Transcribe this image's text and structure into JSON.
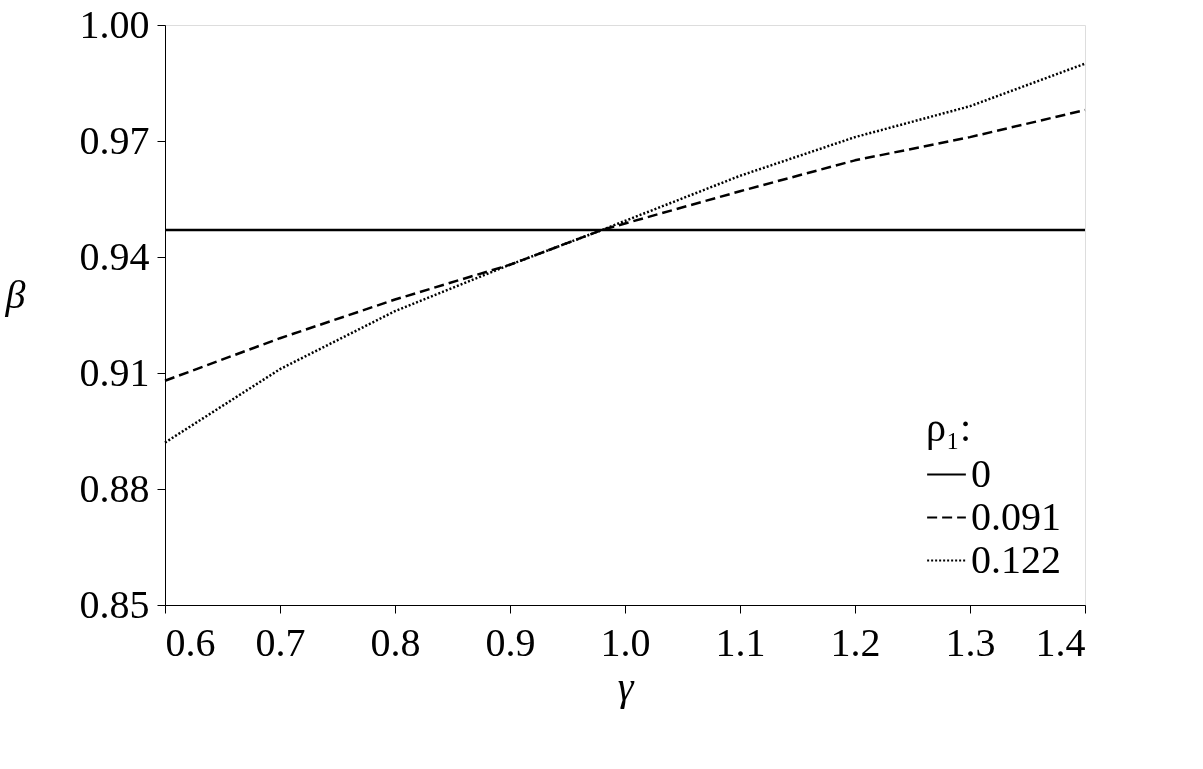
{
  "chart_data": {
    "type": "line",
    "xlabel": "γ",
    "ylabel": "β",
    "legend_title": "ρ₁:",
    "xlim": [
      0.6,
      1.4
    ],
    "xticks": [
      0.6,
      0.7,
      0.8,
      0.9,
      {
        "value": 1.0,
        "label": "1.0"
      },
      1.1,
      1.2,
      1.3,
      1.4
    ],
    "ylim": [
      0.85,
      1.0
    ],
    "yticks": [
      0.85,
      0.88,
      0.91,
      0.94,
      0.97,
      {
        "value": 1.0,
        "label": "1.00"
      }
    ],
    "grid": false,
    "legend": "bottom right",
    "series": [
      {
        "name": "0",
        "color": "#000000",
        "line_style": "solid",
        "x": [
          0.6,
          1.4
        ],
        "values": [
          0.947,
          0.947
        ]
      },
      {
        "name": "0.091",
        "color": "#000000",
        "line_style": "dashed",
        "x": [
          0.6,
          0.7,
          0.8,
          0.9,
          0.98,
          1.1,
          1.2,
          1.3,
          1.4
        ],
        "values": [
          0.908,
          0.919,
          0.929,
          0.938,
          0.947,
          0.957,
          0.965,
          0.971,
          0.978
        ]
      },
      {
        "name": "0.122",
        "color": "#000000",
        "line_style": "dotted",
        "x": [
          0.6,
          0.7,
          0.8,
          0.9,
          0.98,
          1.1,
          1.2,
          1.3,
          1.4
        ],
        "values": [
          0.892,
          0.911,
          0.926,
          0.938,
          0.947,
          0.961,
          0.971,
          0.979,
          0.99
        ]
      }
    ]
  }
}
